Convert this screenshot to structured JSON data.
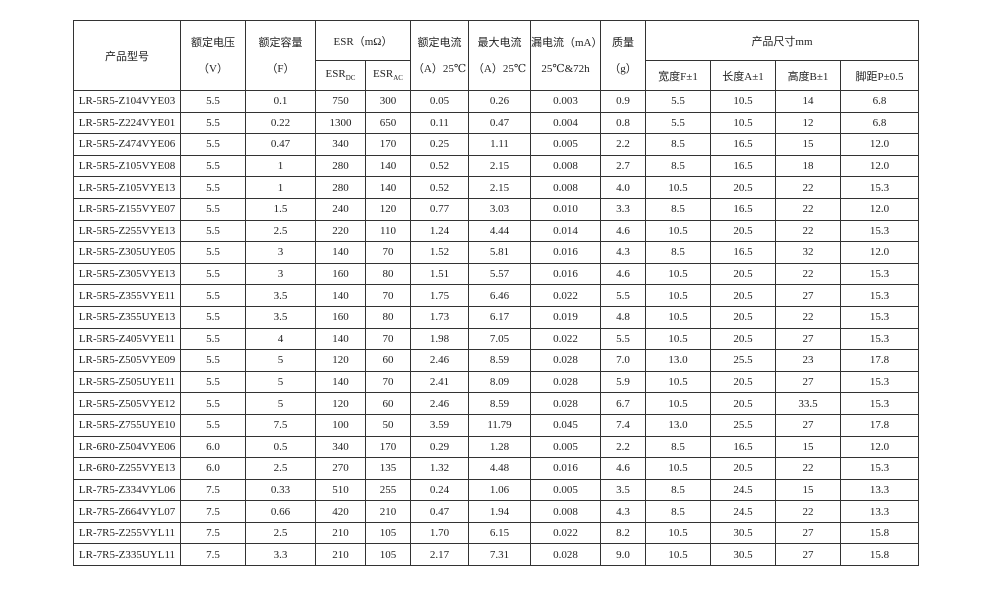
{
  "header": {
    "model": "产品型号",
    "voltage": [
      "额定电压",
      "（V）"
    ],
    "capacitance": [
      "额定容量",
      "（F）"
    ],
    "esr": {
      "title": "ESR（mΩ）",
      "dc": [
        "ESR",
        "DC"
      ],
      "ac": [
        "ESR",
        "AC"
      ]
    },
    "rated_current": [
      "额定电流",
      "（A）25℃"
    ],
    "max_current": [
      "最大电流",
      "（A）25℃"
    ],
    "leakage": [
      "漏电流（mA）",
      "25℃&72h"
    ],
    "mass": [
      "质量",
      "（g）"
    ],
    "size": {
      "title": "产品尺寸mm",
      "columns": [
        "宽度F±1",
        "长度A±1",
        "高度B±1",
        "脚距P±0.5"
      ]
    }
  },
  "rows": [
    [
      "LR-5R5-Z104VYE03",
      "5.5",
      "0.1",
      "750",
      "300",
      "0.05",
      "0.26",
      "0.003",
      "0.9",
      "5.5",
      "10.5",
      "14",
      "6.8"
    ],
    [
      "LR-5R5-Z224VYE01",
      "5.5",
      "0.22",
      "1300",
      "650",
      "0.11",
      "0.47",
      "0.004",
      "0.8",
      "5.5",
      "10.5",
      "12",
      "6.8"
    ],
    [
      "LR-5R5-Z474VYE06",
      "5.5",
      "0.47",
      "340",
      "170",
      "0.25",
      "1.11",
      "0.005",
      "2.2",
      "8.5",
      "16.5",
      "15",
      "12.0"
    ],
    [
      "LR-5R5-Z105VYE08",
      "5.5",
      "1",
      "280",
      "140",
      "0.52",
      "2.15",
      "0.008",
      "2.7",
      "8.5",
      "16.5",
      "18",
      "12.0"
    ],
    [
      "LR-5R5-Z105VYE13",
      "5.5",
      "1",
      "280",
      "140",
      "0.52",
      "2.15",
      "0.008",
      "4.0",
      "10.5",
      "20.5",
      "22",
      "15.3"
    ],
    [
      "LR-5R5-Z155VYE07",
      "5.5",
      "1.5",
      "240",
      "120",
      "0.77",
      "3.03",
      "0.010",
      "3.3",
      "8.5",
      "16.5",
      "22",
      "12.0"
    ],
    [
      "LR-5R5-Z255VYE13",
      "5.5",
      "2.5",
      "220",
      "110",
      "1.24",
      "4.44",
      "0.014",
      "4.6",
      "10.5",
      "20.5",
      "22",
      "15.3"
    ],
    [
      "LR-5R5-Z305UYE05",
      "5.5",
      "3",
      "140",
      "70",
      "1.52",
      "5.81",
      "0.016",
      "4.3",
      "8.5",
      "16.5",
      "32",
      "12.0"
    ],
    [
      "LR-5R5-Z305VYE13",
      "5.5",
      "3",
      "160",
      "80",
      "1.51",
      "5.57",
      "0.016",
      "4.6",
      "10.5",
      "20.5",
      "22",
      "15.3"
    ],
    [
      "LR-5R5-Z355VYE11",
      "5.5",
      "3.5",
      "140",
      "70",
      "1.75",
      "6.46",
      "0.022",
      "5.5",
      "10.5",
      "20.5",
      "27",
      "15.3"
    ],
    [
      "LR-5R5-Z355UYE13",
      "5.5",
      "3.5",
      "160",
      "80",
      "1.73",
      "6.17",
      "0.019",
      "4.8",
      "10.5",
      "20.5",
      "22",
      "15.3"
    ],
    [
      "LR-5R5-Z405VYE11",
      "5.5",
      "4",
      "140",
      "70",
      "1.98",
      "7.05",
      "0.022",
      "5.5",
      "10.5",
      "20.5",
      "27",
      "15.3"
    ],
    [
      "LR-5R5-Z505VYE09",
      "5.5",
      "5",
      "120",
      "60",
      "2.46",
      "8.59",
      "0.028",
      "7.0",
      "13.0",
      "25.5",
      "23",
      "17.8"
    ],
    [
      "LR-5R5-Z505UYE11",
      "5.5",
      "5",
      "140",
      "70",
      "2.41",
      "8.09",
      "0.028",
      "5.9",
      "10.5",
      "20.5",
      "27",
      "15.3"
    ],
    [
      "LR-5R5-Z505VYE12",
      "5.5",
      "5",
      "120",
      "60",
      "2.46",
      "8.59",
      "0.028",
      "6.7",
      "10.5",
      "20.5",
      "33.5",
      "15.3"
    ],
    [
      "LR-5R5-Z755UYE10",
      "5.5",
      "7.5",
      "100",
      "50",
      "3.59",
      "11.79",
      "0.045",
      "7.4",
      "13.0",
      "25.5",
      "27",
      "17.8"
    ],
    [
      "LR-6R0-Z504VYE06",
      "6.0",
      "0.5",
      "340",
      "170",
      "0.29",
      "1.28",
      "0.005",
      "2.2",
      "8.5",
      "16.5",
      "15",
      "12.0"
    ],
    [
      "LR-6R0-Z255VYE13",
      "6.0",
      "2.5",
      "270",
      "135",
      "1.32",
      "4.48",
      "0.016",
      "4.6",
      "10.5",
      "20.5",
      "22",
      "15.3"
    ],
    [
      "LR-7R5-Z334VYL06",
      "7.5",
      "0.33",
      "510",
      "255",
      "0.24",
      "1.06",
      "0.005",
      "3.5",
      "8.5",
      "24.5",
      "15",
      "13.3"
    ],
    [
      "LR-7R5-Z664VYL07",
      "7.5",
      "0.66",
      "420",
      "210",
      "0.47",
      "1.94",
      "0.008",
      "4.3",
      "8.5",
      "24.5",
      "22",
      "13.3"
    ],
    [
      "LR-7R5-Z255VYL11",
      "7.5",
      "2.5",
      "210",
      "105",
      "1.70",
      "6.15",
      "0.022",
      "8.2",
      "10.5",
      "30.5",
      "27",
      "15.8"
    ],
    [
      "LR-7R5-Z335UYL11",
      "7.5",
      "3.3",
      "210",
      "105",
      "2.17",
      "7.31",
      "0.028",
      "9.0",
      "10.5",
      "30.5",
      "27",
      "15.8"
    ]
  ]
}
